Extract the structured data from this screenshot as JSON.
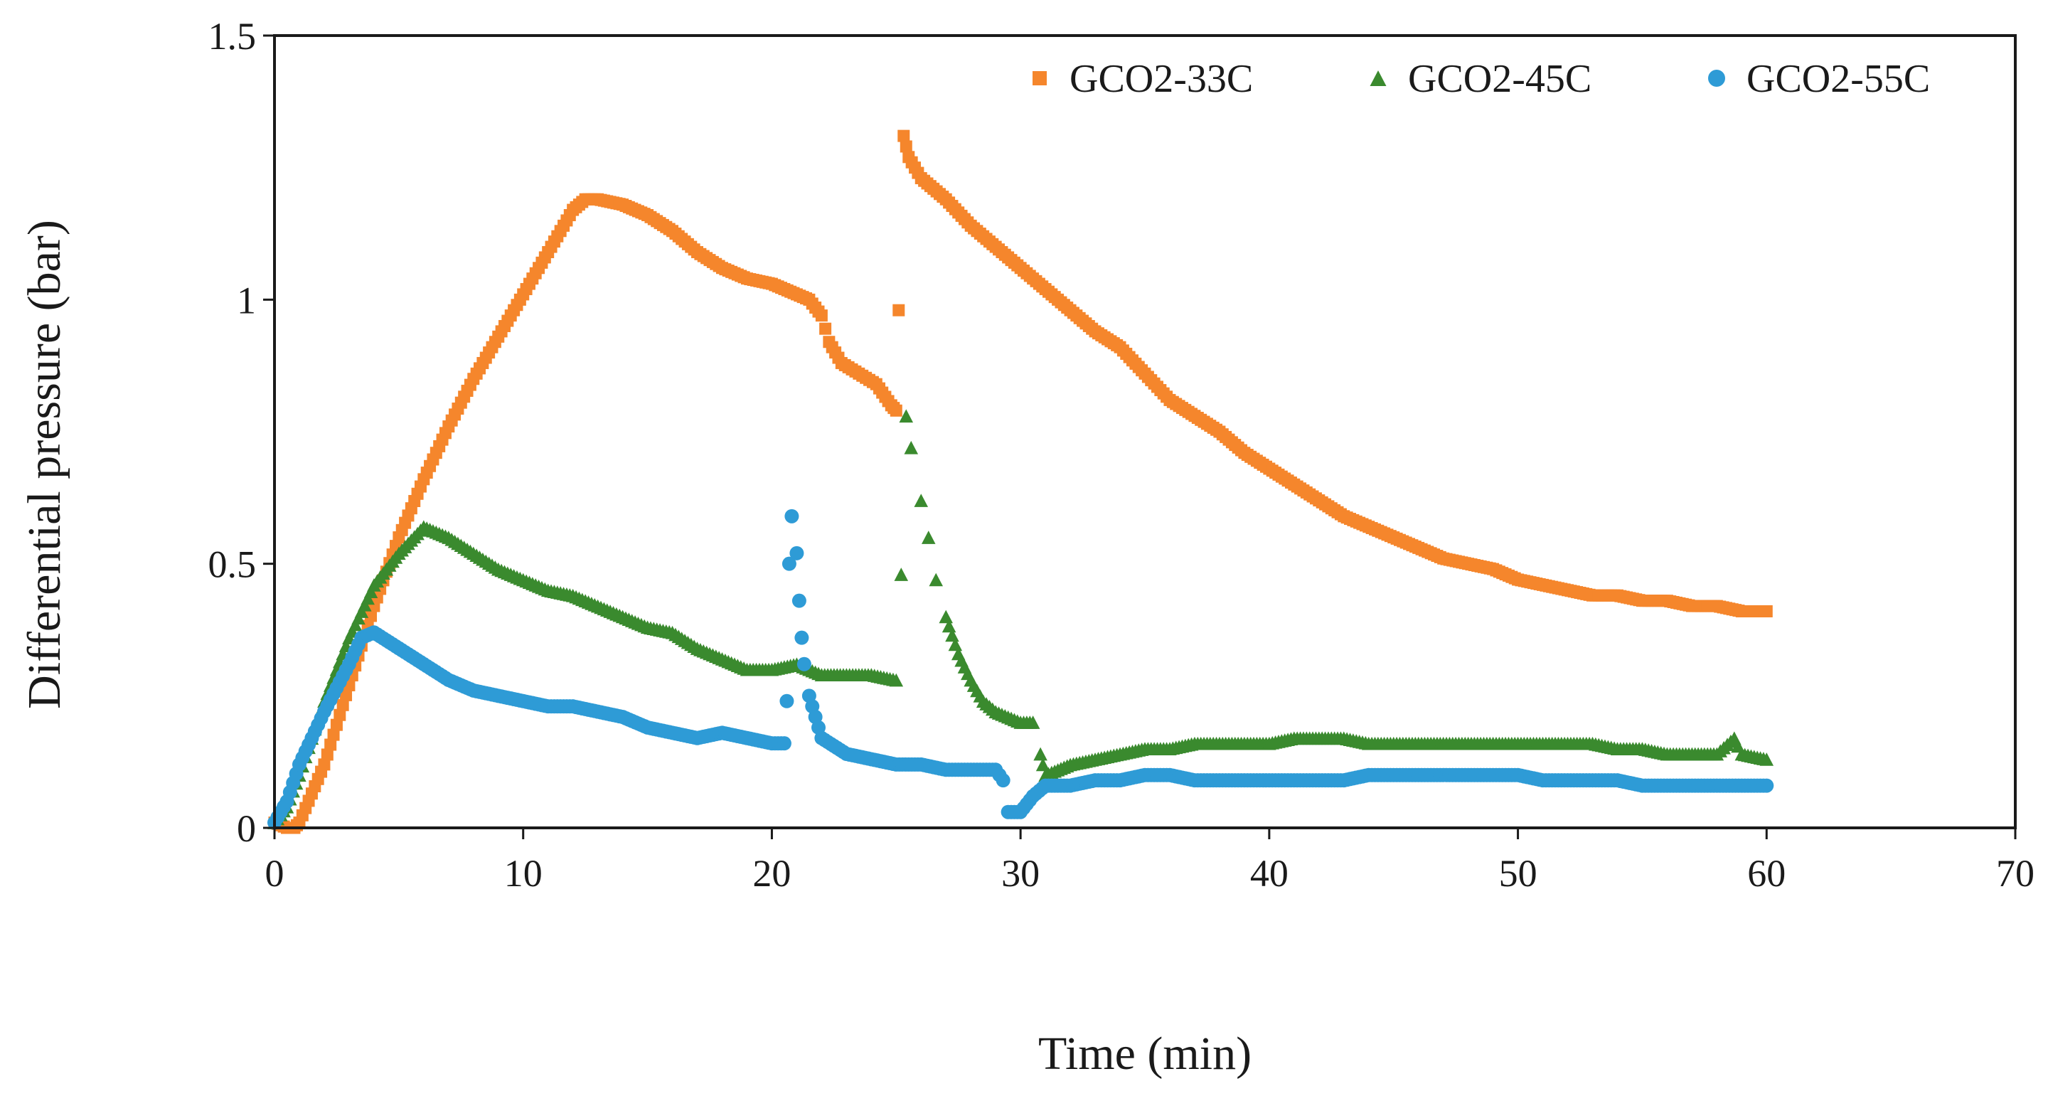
{
  "chart_data": {
    "type": "scatter",
    "title": "",
    "xlabel": "Time (min)",
    "ylabel": "Differential pressure (bar)",
    "xlim": [
      0,
      70
    ],
    "ylim": [
      0,
      1.5
    ],
    "xticks": [
      "0",
      "10",
      "20",
      "30",
      "40",
      "50",
      "60",
      "70"
    ],
    "yticks": [
      "0",
      "0.5",
      "1",
      "1.5"
    ],
    "xtick_values": [
      0,
      10,
      20,
      30,
      40,
      50,
      60,
      70
    ],
    "ytick_values": [
      0,
      0.5,
      1,
      1.5
    ],
    "grid": false,
    "legend_position": "top-right",
    "series": [
      {
        "name": "GCO2-33C",
        "color": "#f5862c",
        "marker": "square",
        "points": [
          [
            0,
            0.01
          ],
          [
            0.5,
            0.0
          ],
          [
            0.8,
            0.0
          ],
          [
            1,
            0.01
          ],
          [
            2,
            0.12
          ],
          [
            3,
            0.27
          ],
          [
            4,
            0.42
          ],
          [
            5,
            0.55
          ],
          [
            6,
            0.66
          ],
          [
            7,
            0.76
          ],
          [
            8,
            0.85
          ],
          [
            9,
            0.93
          ],
          [
            10,
            1.01
          ],
          [
            11,
            1.09
          ],
          [
            12,
            1.17
          ],
          [
            12.5,
            1.19
          ],
          [
            13,
            1.19
          ],
          [
            14,
            1.18
          ],
          [
            15,
            1.16
          ],
          [
            16,
            1.13
          ],
          [
            17,
            1.09
          ],
          [
            18,
            1.06
          ],
          [
            19,
            1.04
          ],
          [
            20,
            1.03
          ],
          [
            21,
            1.01
          ],
          [
            21.5,
            1.0
          ],
          [
            22,
            0.97
          ],
          [
            22.3,
            0.92
          ],
          [
            22.8,
            0.88
          ],
          [
            23.5,
            0.86
          ],
          [
            24.2,
            0.84
          ],
          [
            24.8,
            0.8
          ],
          [
            25,
            0.79
          ],
          [
            25.1,
            0.98
          ],
          [
            25.3,
            1.31
          ],
          [
            25.5,
            1.27
          ],
          [
            26,
            1.23
          ],
          [
            27,
            1.19
          ],
          [
            28,
            1.14
          ],
          [
            29,
            1.1
          ],
          [
            30,
            1.06
          ],
          [
            31,
            1.02
          ],
          [
            32,
            0.98
          ],
          [
            33,
            0.94
          ],
          [
            34,
            0.91
          ],
          [
            35,
            0.86
          ],
          [
            36,
            0.81
          ],
          [
            37,
            0.78
          ],
          [
            38,
            0.75
          ],
          [
            39,
            0.71
          ],
          [
            40,
            0.68
          ],
          [
            41,
            0.65
          ],
          [
            42,
            0.62
          ],
          [
            43,
            0.59
          ],
          [
            44,
            0.57
          ],
          [
            45,
            0.55
          ],
          [
            46,
            0.53
          ],
          [
            47,
            0.51
          ],
          [
            48,
            0.5
          ],
          [
            49,
            0.49
          ],
          [
            50,
            0.47
          ],
          [
            51,
            0.46
          ],
          [
            52,
            0.45
          ],
          [
            53,
            0.44
          ],
          [
            54,
            0.44
          ],
          [
            55,
            0.43
          ],
          [
            56,
            0.43
          ],
          [
            57,
            0.42
          ],
          [
            58,
            0.42
          ],
          [
            59,
            0.41
          ],
          [
            60,
            0.41
          ]
        ]
      },
      {
        "name": "GCO2-45C",
        "color": "#3a8a2e",
        "marker": "triangle",
        "points": [
          [
            0,
            0.01
          ],
          [
            0.5,
            0.04
          ],
          [
            1,
            0.1
          ],
          [
            2,
            0.24
          ],
          [
            3,
            0.36
          ],
          [
            4,
            0.46
          ],
          [
            5,
            0.52
          ],
          [
            6,
            0.57
          ],
          [
            7,
            0.55
          ],
          [
            8,
            0.52
          ],
          [
            9,
            0.49
          ],
          [
            10,
            0.47
          ],
          [
            11,
            0.45
          ],
          [
            12,
            0.44
          ],
          [
            13,
            0.42
          ],
          [
            14,
            0.4
          ],
          [
            15,
            0.38
          ],
          [
            16,
            0.37
          ],
          [
            17,
            0.34
          ],
          [
            18,
            0.32
          ],
          [
            19,
            0.3
          ],
          [
            20,
            0.3
          ],
          [
            21,
            0.31
          ],
          [
            22,
            0.29
          ],
          [
            23,
            0.29
          ],
          [
            24,
            0.29
          ],
          [
            25,
            0.28
          ],
          [
            25.2,
            0.48
          ],
          [
            25.4,
            0.78
          ],
          [
            25.6,
            0.72
          ],
          [
            26,
            0.62
          ],
          [
            26.3,
            0.55
          ],
          [
            26.6,
            0.47
          ],
          [
            27,
            0.4
          ],
          [
            27.5,
            0.33
          ],
          [
            28,
            0.28
          ],
          [
            28.5,
            0.24
          ],
          [
            29,
            0.22
          ],
          [
            29.5,
            0.21
          ],
          [
            30,
            0.2
          ],
          [
            30.5,
            0.2
          ],
          [
            30.8,
            0.14
          ],
          [
            31,
            0.1
          ],
          [
            31.5,
            0.11
          ],
          [
            32,
            0.12
          ],
          [
            33,
            0.13
          ],
          [
            34,
            0.14
          ],
          [
            35,
            0.15
          ],
          [
            36,
            0.15
          ],
          [
            37,
            0.16
          ],
          [
            38,
            0.16
          ],
          [
            39,
            0.16
          ],
          [
            40,
            0.16
          ],
          [
            41,
            0.17
          ],
          [
            42,
            0.17
          ],
          [
            43,
            0.17
          ],
          [
            44,
            0.16
          ],
          [
            45,
            0.16
          ],
          [
            46,
            0.16
          ],
          [
            47,
            0.16
          ],
          [
            48,
            0.16
          ],
          [
            49,
            0.16
          ],
          [
            50,
            0.16
          ],
          [
            51,
            0.16
          ],
          [
            52,
            0.16
          ],
          [
            53,
            0.16
          ],
          [
            54,
            0.15
          ],
          [
            55,
            0.15
          ],
          [
            56,
            0.14
          ],
          [
            57,
            0.14
          ],
          [
            58,
            0.14
          ],
          [
            58.7,
            0.17
          ],
          [
            59,
            0.14
          ],
          [
            60,
            0.13
          ]
        ]
      },
      {
        "name": "GCO2-55C",
        "color": "#2e9bd6",
        "marker": "circle",
        "points": [
          [
            0,
            0.01
          ],
          [
            0.5,
            0.05
          ],
          [
            1,
            0.12
          ],
          [
            2,
            0.22
          ],
          [
            3,
            0.31
          ],
          [
            3.5,
            0.36
          ],
          [
            4,
            0.37
          ],
          [
            5,
            0.34
          ],
          [
            6,
            0.31
          ],
          [
            7,
            0.28
          ],
          [
            8,
            0.26
          ],
          [
            9,
            0.25
          ],
          [
            10,
            0.24
          ],
          [
            11,
            0.23
          ],
          [
            12,
            0.23
          ],
          [
            13,
            0.22
          ],
          [
            14,
            0.21
          ],
          [
            15,
            0.19
          ],
          [
            16,
            0.18
          ],
          [
            17,
            0.17
          ],
          [
            18,
            0.18
          ],
          [
            19,
            0.17
          ],
          [
            20,
            0.16
          ],
          [
            20.5,
            0.16
          ],
          [
            20.6,
            0.24
          ],
          [
            20.7,
            0.5
          ],
          [
            20.8,
            0.59
          ],
          [
            21,
            0.52
          ],
          [
            21.1,
            0.43
          ],
          [
            21.2,
            0.36
          ],
          [
            21.3,
            0.31
          ],
          [
            21.5,
            0.25
          ],
          [
            22,
            0.17
          ],
          [
            23,
            0.14
          ],
          [
            24,
            0.13
          ],
          [
            25,
            0.12
          ],
          [
            26,
            0.12
          ],
          [
            27,
            0.11
          ],
          [
            28,
            0.11
          ],
          [
            29,
            0.11
          ],
          [
            29.3,
            0.09
          ],
          [
            29.5,
            0.03
          ],
          [
            30,
            0.03
          ],
          [
            30.5,
            0.06
          ],
          [
            31,
            0.08
          ],
          [
            32,
            0.08
          ],
          [
            33,
            0.09
          ],
          [
            34,
            0.09
          ],
          [
            35,
            0.1
          ],
          [
            36,
            0.1
          ],
          [
            37,
            0.09
          ],
          [
            38,
            0.09
          ],
          [
            39,
            0.09
          ],
          [
            40,
            0.09
          ],
          [
            41,
            0.09
          ],
          [
            42,
            0.09
          ],
          [
            43,
            0.09
          ],
          [
            44,
            0.1
          ],
          [
            45,
            0.1
          ],
          [
            46,
            0.1
          ],
          [
            47,
            0.1
          ],
          [
            48,
            0.1
          ],
          [
            49,
            0.1
          ],
          [
            50,
            0.1
          ],
          [
            51,
            0.09
          ],
          [
            52,
            0.09
          ],
          [
            53,
            0.09
          ],
          [
            54,
            0.09
          ],
          [
            55,
            0.08
          ],
          [
            56,
            0.08
          ],
          [
            57,
            0.08
          ],
          [
            58,
            0.08
          ],
          [
            59,
            0.08
          ],
          [
            60,
            0.08
          ]
        ]
      }
    ]
  }
}
